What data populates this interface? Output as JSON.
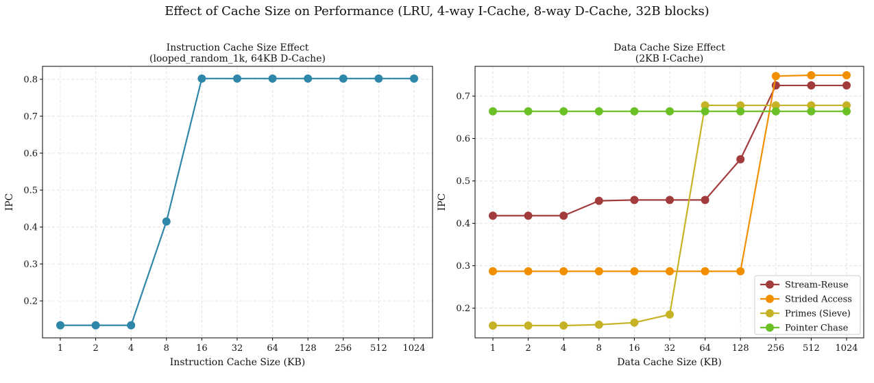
{
  "suptitle": "Effect of Cache Size on Performance (LRU, 4-way I-Cache, 8-way D-Cache, 32B blocks)",
  "chart_data": [
    {
      "type": "line",
      "title": [
        "Instruction Cache Size Effect",
        "(looped_random_1k, 64KB D-Cache)"
      ],
      "xlabel": "Instruction Cache Size (KB)",
      "ylabel": "IPC",
      "categories": [
        "1",
        "2",
        "4",
        "8",
        "16",
        "32",
        "64",
        "128",
        "256",
        "512",
        "1024"
      ],
      "ylim": [
        0.1,
        0.835
      ],
      "yticks": [
        "0.2",
        "0.3",
        "0.4",
        "0.5",
        "0.6",
        "0.7",
        "0.8"
      ],
      "grid": true,
      "legend": "none",
      "series": [
        {
          "color": "#2e86a8",
          "values": [
            0.134,
            0.134,
            0.134,
            0.415,
            0.802,
            0.802,
            0.802,
            0.802,
            0.802,
            0.802,
            0.802
          ]
        }
      ]
    },
    {
      "type": "line",
      "title": [
        "Data Cache Size Effect",
        "(2KB I-Cache)"
      ],
      "xlabel": "Data Cache Size (KB)",
      "ylabel": "IPC",
      "categories": [
        "1",
        "2",
        "4",
        "8",
        "16",
        "32",
        "64",
        "128",
        "256",
        "512",
        "1024"
      ],
      "ylim": [
        0.13,
        0.77
      ],
      "yticks": [
        "0.2",
        "0.3",
        "0.4",
        "0.5",
        "0.6",
        "0.7"
      ],
      "grid": true,
      "legend": "lower-right",
      "series": [
        {
          "name": "Stream-Reuse",
          "color": "#a23b3b",
          "values": [
            0.418,
            0.418,
            0.418,
            0.453,
            0.455,
            0.455,
            0.455,
            0.551,
            0.725,
            0.725,
            0.725
          ]
        },
        {
          "name": "Strided Access",
          "color": "#f18f01",
          "values": [
            0.287,
            0.287,
            0.287,
            0.287,
            0.287,
            0.287,
            0.287,
            0.287,
            0.747,
            0.749,
            0.749
          ]
        },
        {
          "name": "Primes (Sieve)",
          "color": "#c5b325",
          "values": [
            0.159,
            0.159,
            0.159,
            0.161,
            0.166,
            0.185,
            0.678,
            0.678,
            0.678,
            0.678,
            0.678
          ]
        },
        {
          "name": "Pointer Chase",
          "color": "#6bc026",
          "values": [
            0.664,
            0.664,
            0.664,
            0.664,
            0.664,
            0.664,
            0.664,
            0.664,
            0.664,
            0.664,
            0.664
          ]
        }
      ]
    }
  ]
}
